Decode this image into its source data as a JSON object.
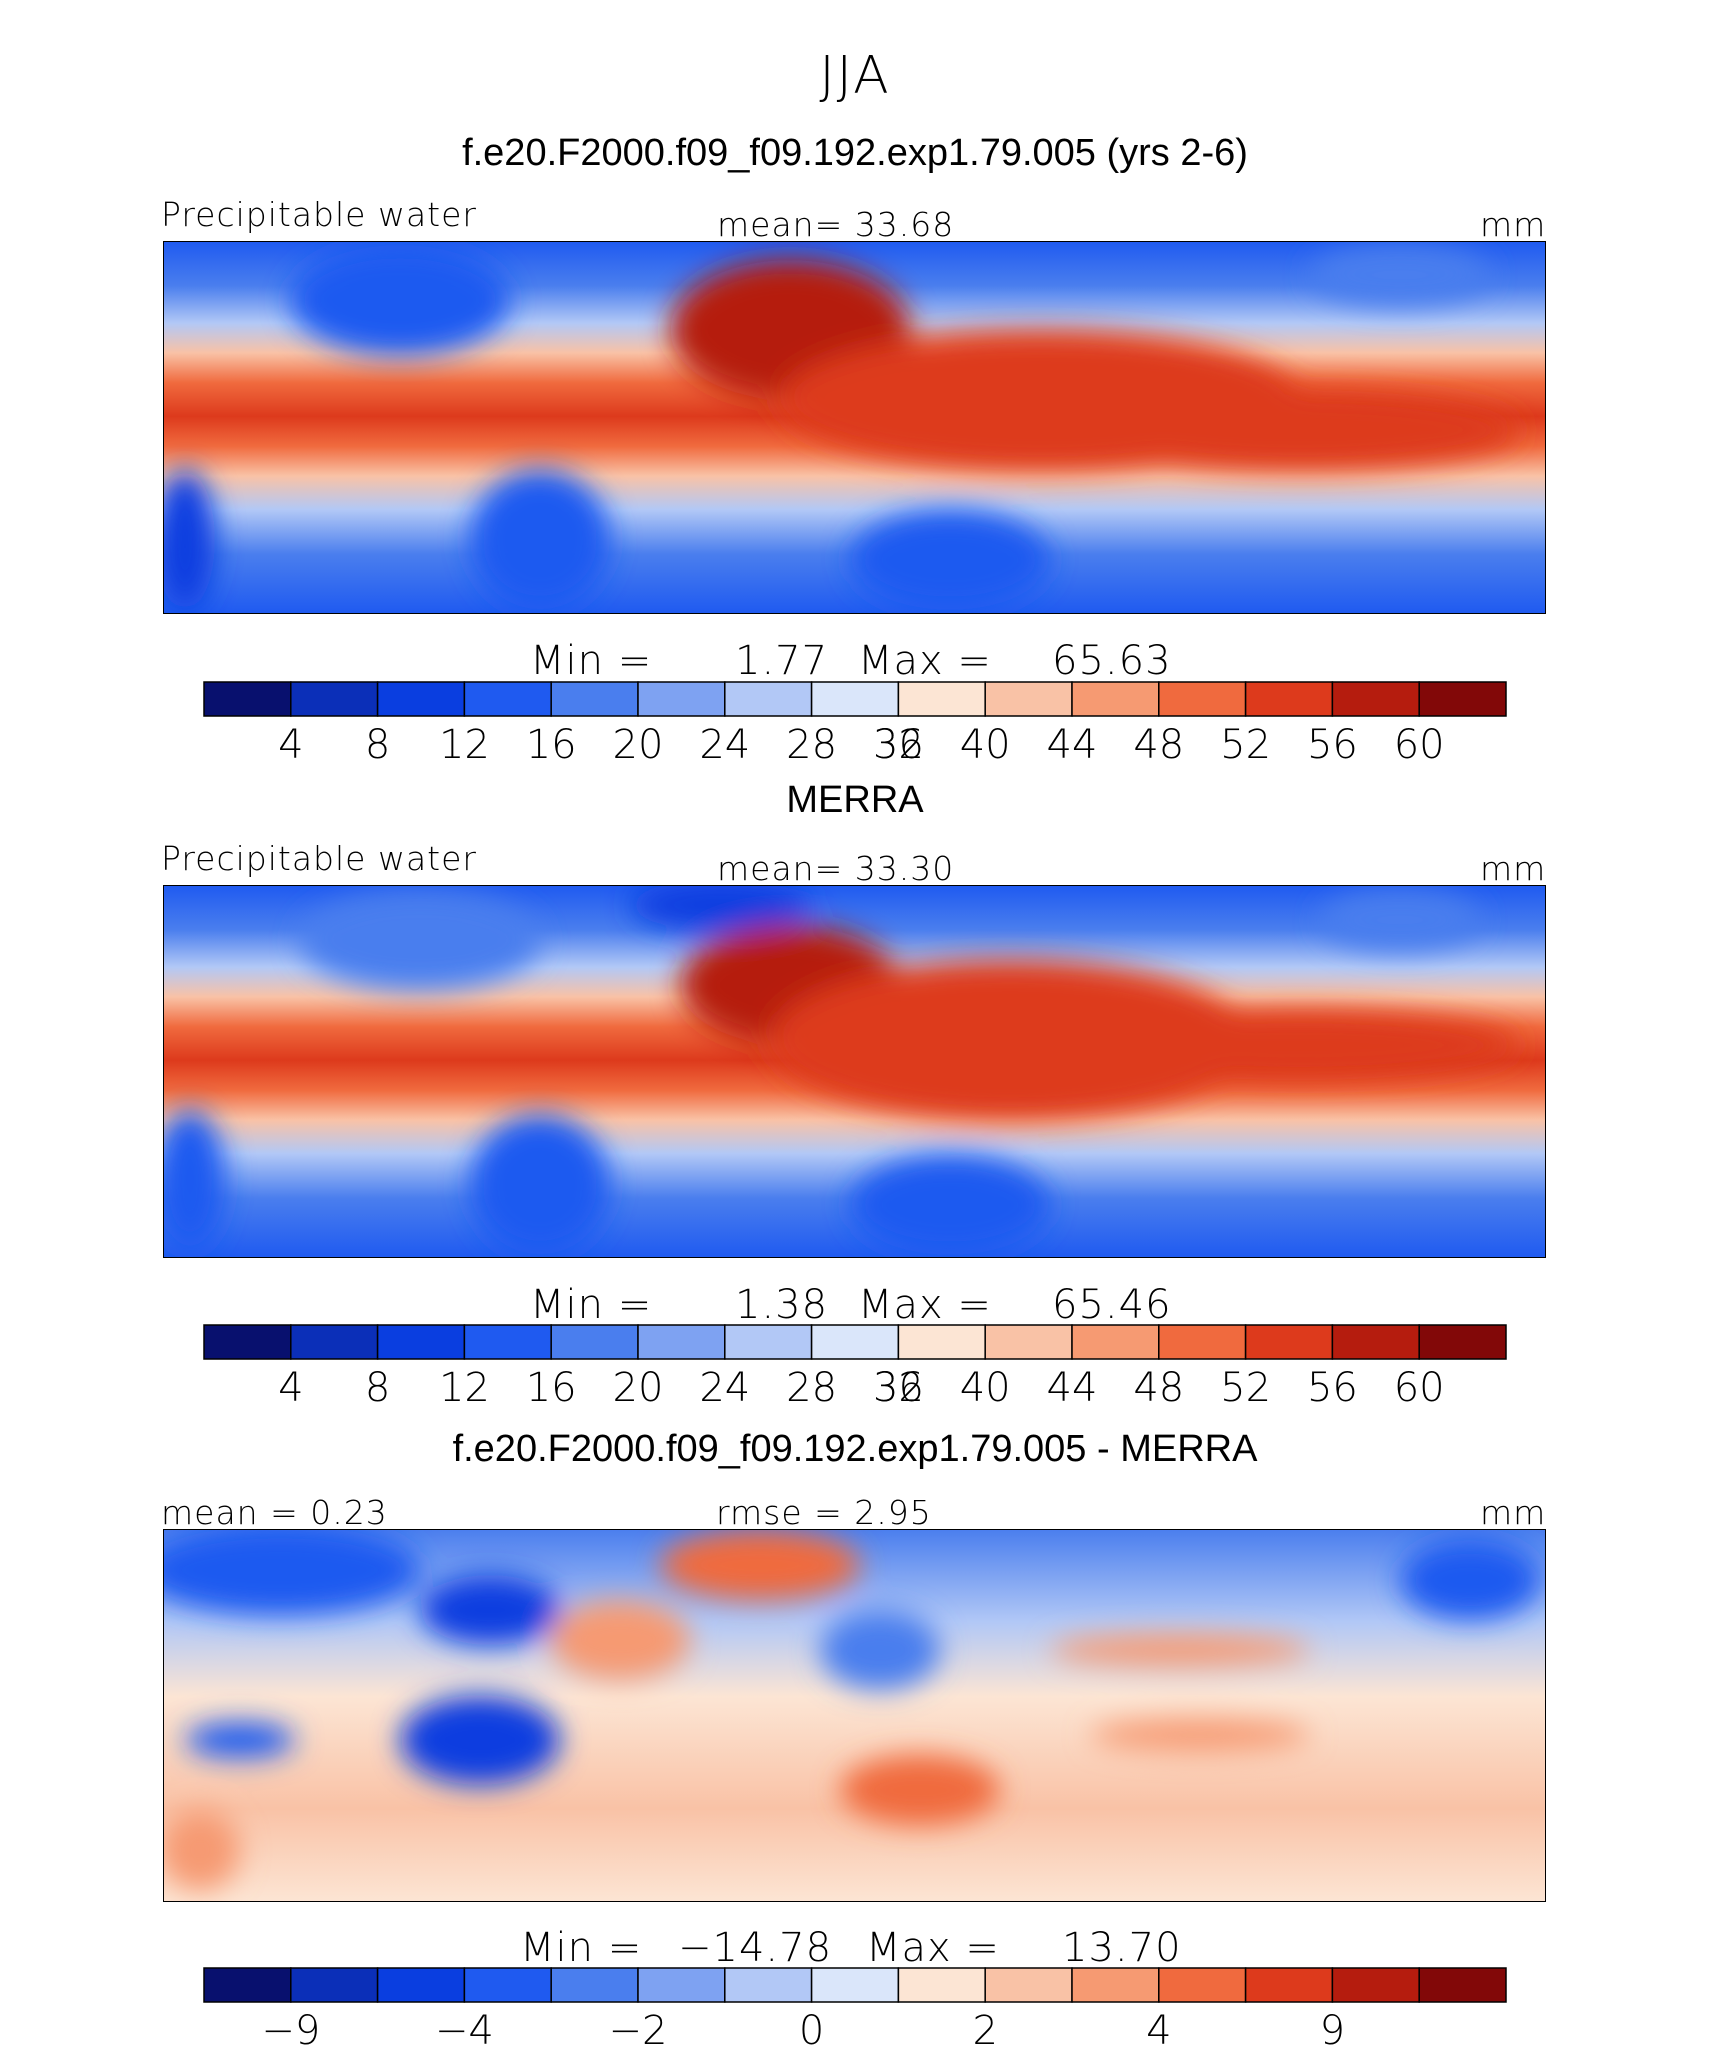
{
  "title": "JJA",
  "chart_data": [
    {
      "type": "heatmap",
      "title": "f.e20.F2000.f09_f09.192.exp1.79.005 (yrs 2-6)",
      "left_label": "Precipitable water",
      "center_label": "mean=   33.68",
      "units": "mm",
      "min_label": "Min  =",
      "min_value": "1.77",
      "max_label": "Max  =",
      "max_value": "65.63",
      "levels": [
        4,
        8,
        12,
        16,
        20,
        24,
        28,
        32,
        36,
        40,
        44,
        48,
        52,
        56,
        60
      ],
      "colorbar_labels": [
        "4",
        "8",
        "12",
        "16",
        "20",
        "24",
        "28",
        "32",
        "36",
        "40",
        "44",
        "48",
        "52",
        "56",
        "60"
      ],
      "colors": [
        "#08106e",
        "#0b2fb8",
        "#0a3ee0",
        "#1f5af0",
        "#4a7eee",
        "#7ea2f2",
        "#b2c8f6",
        "#dae6fa",
        "#fce5d4",
        "#f9c2a6",
        "#f69a72",
        "#f06a3e",
        "#dd3a1c",
        "#b51c0e",
        "#820808"
      ]
    },
    {
      "type": "heatmap",
      "title": "MERRA",
      "left_label": "Precipitable water",
      "center_label": "mean=   33.30",
      "units": "mm",
      "min_label": "Min  =",
      "min_value": "1.38",
      "max_label": "Max  =",
      "max_value": "65.46",
      "levels": [
        4,
        8,
        12,
        16,
        20,
        24,
        28,
        32,
        36,
        40,
        44,
        48,
        52,
        56,
        60
      ],
      "colorbar_labels": [
        "4",
        "8",
        "12",
        "16",
        "20",
        "24",
        "28",
        "32",
        "36",
        "40",
        "44",
        "48",
        "52",
        "56",
        "60"
      ],
      "colors": [
        "#08106e",
        "#0b2fb8",
        "#0a3ee0",
        "#1f5af0",
        "#4a7eee",
        "#7ea2f2",
        "#b2c8f6",
        "#dae6fa",
        "#fce5d4",
        "#f9c2a6",
        "#f69a72",
        "#f06a3e",
        "#dd3a1c",
        "#b51c0e",
        "#820808"
      ]
    },
    {
      "type": "heatmap",
      "title": "f.e20.F2000.f09_f09.192.exp1.79.005 - MERRA",
      "left_label": "mean =    0.23",
      "center_label": "rmse =    2.95",
      "units": "mm",
      "min_label": "Min  =",
      "min_value": "−14.78",
      "max_label": "Max  =",
      "max_value": "13.70",
      "levels": [
        -9,
        -4,
        -2,
        0,
        2,
        4,
        9
      ],
      "colorbar_labels": [
        "−9",
        "−4",
        "−2",
        "0",
        "2",
        "4",
        "9"
      ],
      "colors": [
        "#08106e",
        "#0b2fb8",
        "#0a3ee0",
        "#1f5af0",
        "#4a7eee",
        "#7ea2f2",
        "#b2c8f6",
        "#dae6fa",
        "#fce5d4",
        "#f9c2a6",
        "#f69a72",
        "#f06a3e",
        "#dd3a1c",
        "#b51c0e",
        "#820808"
      ]
    }
  ]
}
